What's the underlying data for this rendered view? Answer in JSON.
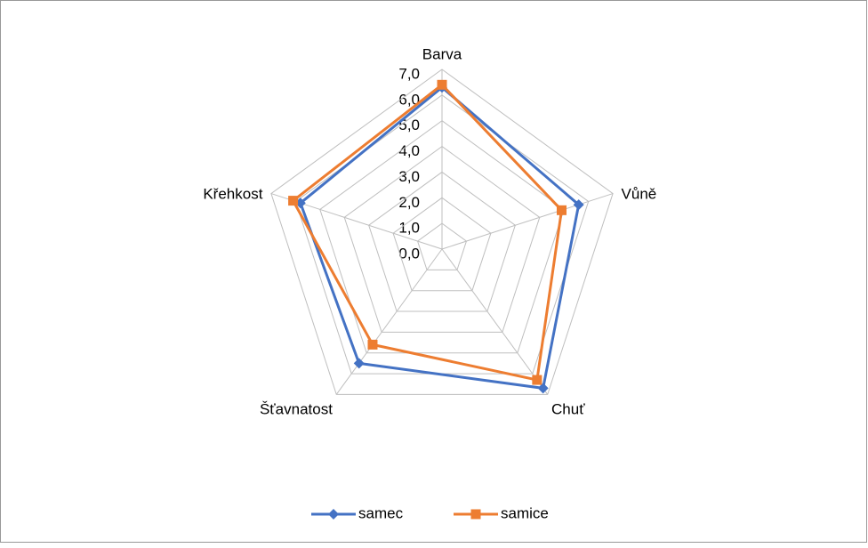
{
  "chart_data": {
    "type": "radar",
    "categories": [
      "Barva",
      "Vůně",
      "Chuť",
      "Šťavnatost",
      "Křehkost"
    ],
    "series": [
      {
        "name": "samec",
        "color": "#4472c4",
        "marker": "diamond",
        "values": [
          6.3,
          5.6,
          6.7,
          5.5,
          5.8
        ]
      },
      {
        "name": "samice",
        "color": "#ed7d31",
        "marker": "square",
        "values": [
          6.4,
          4.9,
          6.3,
          4.6,
          6.1
        ]
      }
    ],
    "ylim": [
      0,
      7
    ],
    "yticks": [
      {
        "value": 0,
        "label": "0,0"
      },
      {
        "value": 1,
        "label": "1,0"
      },
      {
        "value": 2,
        "label": "2,0"
      },
      {
        "value": 3,
        "label": "3,0"
      },
      {
        "value": 4,
        "label": "4,0"
      },
      {
        "value": 5,
        "label": "5,0"
      },
      {
        "value": 6,
        "label": "6,0"
      },
      {
        "value": 7,
        "label": "7,0"
      }
    ],
    "grid": true,
    "legend": "bottom"
  }
}
